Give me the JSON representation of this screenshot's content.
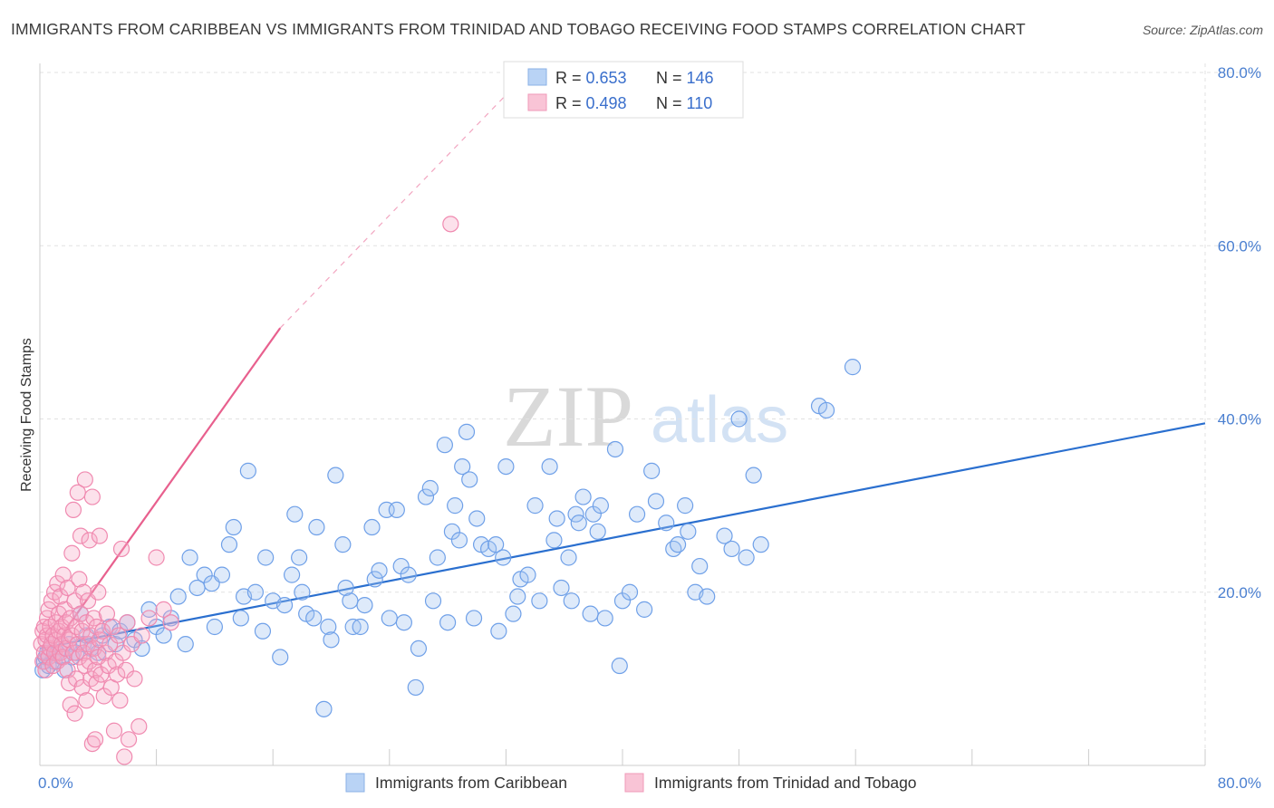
{
  "title": "IMMIGRANTS FROM CARIBBEAN VS IMMIGRANTS FROM TRINIDAD AND TOBAGO RECEIVING FOOD STAMPS CORRELATION CHART",
  "source": "Source: ZipAtlas.com",
  "watermark": {
    "zip": "ZIP",
    "atlas": "atlas"
  },
  "colors": {
    "blue": "#6fa0e8",
    "blue_line": "#2a6fcf",
    "pink": "#f28db0",
    "pink_line": "#e8608e",
    "tick": "#4a7fd0"
  },
  "legend": {
    "rows": [
      {
        "r_label": "R = ",
        "r_value": "0.653",
        "n_label": "N = ",
        "n_value": "146"
      },
      {
        "r_label": "R = ",
        "r_value": "0.498",
        "n_label": "N = ",
        "n_value": "110"
      }
    ]
  },
  "chart_data": {
    "type": "scatter",
    "title": "IMMIGRANTS FROM CARIBBEAN VS IMMIGRANTS FROM TRINIDAD AND TOBAGO RECEIVING FOOD STAMPS CORRELATION CHART",
    "xlabel": "",
    "ylabel": "Receiving Food Stamps",
    "xlim": [
      0,
      80
    ],
    "ylim": [
      0,
      80
    ],
    "x_tick_labels": [
      "0.0%",
      "80.0%"
    ],
    "y_tick_labels": [
      "20.0%",
      "40.0%",
      "60.0%",
      "80.0%"
    ],
    "y_ticks": [
      20,
      40,
      60,
      80
    ],
    "grid": true,
    "legend_placement": "top-center",
    "series": [
      {
        "name": "Immigrants from Caribbean",
        "color": "#6fa0e8",
        "trend": {
          "x": [
            0,
            80
          ],
          "y": [
            13.5,
            39.5
          ],
          "dashed": false
        },
        "points": [
          [
            0.2,
            11
          ],
          [
            0.3,
            12
          ],
          [
            0.4,
            12.5
          ],
          [
            0.5,
            13
          ],
          [
            0.6,
            11.5
          ],
          [
            0.8,
            14
          ],
          [
            1.0,
            12
          ],
          [
            1.2,
            13
          ],
          [
            1.5,
            12.5
          ],
          [
            1.7,
            11
          ],
          [
            2.0,
            14
          ],
          [
            2.2,
            12.5
          ],
          [
            2.5,
            13
          ],
          [
            2.8,
            17.5
          ],
          [
            3.0,
            14
          ],
          [
            3.2,
            15
          ],
          [
            3.5,
            13.5
          ],
          [
            4.0,
            13
          ],
          [
            4.3,
            15
          ],
          [
            4.8,
            16
          ],
          [
            5.2,
            14
          ],
          [
            5.5,
            15.5
          ],
          [
            6.0,
            16.5
          ],
          [
            6.5,
            14.5
          ],
          [
            7.0,
            13.5
          ],
          [
            7.5,
            18
          ],
          [
            8.0,
            16
          ],
          [
            8.5,
            15
          ],
          [
            9.0,
            17
          ],
          [
            9.5,
            19.5
          ],
          [
            10.0,
            14
          ],
          [
            10.3,
            24
          ],
          [
            10.8,
            20.5
          ],
          [
            11.3,
            22
          ],
          [
            11.8,
            21
          ],
          [
            12.0,
            16
          ],
          [
            12.5,
            22
          ],
          [
            13.0,
            25.5
          ],
          [
            13.3,
            27.5
          ],
          [
            13.8,
            17
          ],
          [
            14.0,
            19.5
          ],
          [
            14.3,
            34
          ],
          [
            14.8,
            20
          ],
          [
            15.3,
            15.5
          ],
          [
            15.5,
            24
          ],
          [
            16.0,
            19
          ],
          [
            16.5,
            12.5
          ],
          [
            16.8,
            18.5
          ],
          [
            17.3,
            22
          ],
          [
            17.5,
            29
          ],
          [
            17.8,
            24
          ],
          [
            18.0,
            20
          ],
          [
            18.3,
            17.5
          ],
          [
            18.8,
            17
          ],
          [
            19.0,
            27.5
          ],
          [
            19.5,
            6.5
          ],
          [
            19.8,
            16
          ],
          [
            20.0,
            14.5
          ],
          [
            20.3,
            33.5
          ],
          [
            20.8,
            25.5
          ],
          [
            21.0,
            20.5
          ],
          [
            21.3,
            19
          ],
          [
            21.5,
            16
          ],
          [
            22.0,
            16
          ],
          [
            22.3,
            18.5
          ],
          [
            22.8,
            27.5
          ],
          [
            23.0,
            21.5
          ],
          [
            23.3,
            22.5
          ],
          [
            23.8,
            29.5
          ],
          [
            24.0,
            17
          ],
          [
            24.5,
            29.5
          ],
          [
            24.8,
            23
          ],
          [
            25.0,
            16.5
          ],
          [
            25.3,
            22
          ],
          [
            25.8,
            9
          ],
          [
            26.0,
            13.5
          ],
          [
            26.5,
            31
          ],
          [
            26.8,
            32
          ],
          [
            27.0,
            19
          ],
          [
            27.3,
            24
          ],
          [
            27.8,
            37
          ],
          [
            28.0,
            16.5
          ],
          [
            28.3,
            27
          ],
          [
            28.5,
            30
          ],
          [
            28.8,
            26
          ],
          [
            29.0,
            34.5
          ],
          [
            29.3,
            38.5
          ],
          [
            29.5,
            33
          ],
          [
            29.8,
            17
          ],
          [
            30.0,
            28.5
          ],
          [
            30.3,
            25.5
          ],
          [
            30.8,
            25
          ],
          [
            31.3,
            25.5
          ],
          [
            31.5,
            15.5
          ],
          [
            31.8,
            24
          ],
          [
            32.0,
            34.5
          ],
          [
            32.5,
            17.5
          ],
          [
            32.8,
            19.5
          ],
          [
            33.0,
            21.5
          ],
          [
            33.5,
            22
          ],
          [
            34.0,
            30
          ],
          [
            34.3,
            19
          ],
          [
            35.0,
            34.5
          ],
          [
            35.3,
            26
          ],
          [
            35.5,
            28.5
          ],
          [
            35.8,
            20.5
          ],
          [
            36.3,
            24
          ],
          [
            36.5,
            19
          ],
          [
            36.8,
            29
          ],
          [
            37.0,
            28
          ],
          [
            37.3,
            31
          ],
          [
            37.8,
            17.5
          ],
          [
            38.0,
            29
          ],
          [
            38.3,
            27
          ],
          [
            38.5,
            30
          ],
          [
            38.8,
            17
          ],
          [
            39.5,
            36.5
          ],
          [
            39.8,
            11.5
          ],
          [
            40.0,
            19
          ],
          [
            40.5,
            20
          ],
          [
            41.0,
            29
          ],
          [
            41.5,
            18
          ],
          [
            42.0,
            34
          ],
          [
            42.3,
            30.5
          ],
          [
            43.0,
            28
          ],
          [
            43.5,
            25
          ],
          [
            43.8,
            25.5
          ],
          [
            44.3,
            30
          ],
          [
            44.5,
            27
          ],
          [
            45.0,
            20
          ],
          [
            45.3,
            23
          ],
          [
            45.8,
            19.5
          ],
          [
            47.0,
            26.5
          ],
          [
            47.5,
            25
          ],
          [
            48.0,
            40
          ],
          [
            48.5,
            24
          ],
          [
            49.0,
            33.5
          ],
          [
            49.5,
            25.5
          ],
          [
            53.5,
            41.5
          ],
          [
            54.0,
            41
          ],
          [
            55.8,
            46
          ]
        ]
      },
      {
        "name": "Immigrants from Trinidad and Tobago",
        "color": "#f28db0",
        "trend": {
          "x": [
            0,
            16.5
          ],
          "y": [
            11.5,
            50.5
          ],
          "dashed": false,
          "extension": {
            "x": [
              16.5,
              33.5
            ],
            "y": [
              50.5,
              80
            ],
            "dashed": true
          }
        },
        "points": [
          [
            0.1,
            14
          ],
          [
            0.2,
            15.5
          ],
          [
            0.2,
            12
          ],
          [
            0.3,
            16
          ],
          [
            0.3,
            13
          ],
          [
            0.4,
            14.5
          ],
          [
            0.4,
            11
          ],
          [
            0.5,
            17
          ],
          [
            0.5,
            15
          ],
          [
            0.6,
            12.5
          ],
          [
            0.6,
            18
          ],
          [
            0.7,
            13.5
          ],
          [
            0.7,
            16
          ],
          [
            0.8,
            19
          ],
          [
            0.8,
            14
          ],
          [
            0.9,
            15
          ],
          [
            0.9,
            11.5
          ],
          [
            1.0,
            20
          ],
          [
            1.0,
            13
          ],
          [
            1.1,
            16.5
          ],
          [
            1.1,
            14.5
          ],
          [
            1.2,
            12
          ],
          [
            1.2,
            21
          ],
          [
            1.3,
            15.5
          ],
          [
            1.3,
            17.5
          ],
          [
            1.4,
            13
          ],
          [
            1.4,
            19.5
          ],
          [
            1.5,
            16
          ],
          [
            1.5,
            14
          ],
          [
            1.6,
            12.5
          ],
          [
            1.6,
            22
          ],
          [
            1.7,
            15
          ],
          [
            1.7,
            18
          ],
          [
            1.8,
            13.5
          ],
          [
            1.8,
            16.5
          ],
          [
            1.9,
            11
          ],
          [
            1.9,
            20.5
          ],
          [
            2.0,
            14.5
          ],
          [
            2.0,
            9.5
          ],
          [
            2.1,
            17
          ],
          [
            2.1,
            7
          ],
          [
            2.2,
            15
          ],
          [
            2.2,
            24.5
          ],
          [
            2.3,
            13
          ],
          [
            2.3,
            29.5
          ],
          [
            2.4,
            19
          ],
          [
            2.4,
            6
          ],
          [
            2.5,
            16
          ],
          [
            2.5,
            10
          ],
          [
            2.6,
            31.5
          ],
          [
            2.6,
            14
          ],
          [
            2.7,
            21.5
          ],
          [
            2.7,
            12.5
          ],
          [
            2.8,
            26.5
          ],
          [
            2.8,
            17.5
          ],
          [
            2.9,
            15.5
          ],
          [
            2.9,
            9
          ],
          [
            3.0,
            20
          ],
          [
            3.0,
            13
          ],
          [
            3.1,
            33
          ],
          [
            3.1,
            11.5
          ],
          [
            3.2,
            16.5
          ],
          [
            3.2,
            7.5
          ],
          [
            3.3,
            14
          ],
          [
            3.3,
            19
          ],
          [
            3.4,
            12
          ],
          [
            3.4,
            26
          ],
          [
            3.5,
            15
          ],
          [
            3.5,
            10
          ],
          [
            3.6,
            2.5
          ],
          [
            3.6,
            31
          ],
          [
            3.7,
            13.5
          ],
          [
            3.7,
            17
          ],
          [
            3.8,
            11
          ],
          [
            3.8,
            3
          ],
          [
            3.9,
            16
          ],
          [
            3.9,
            9.5
          ],
          [
            4.0,
            20
          ],
          [
            4.0,
            12.5
          ],
          [
            4.1,
            14.5
          ],
          [
            4.1,
            26.5
          ],
          [
            4.2,
            10.5
          ],
          [
            4.3,
            15.5
          ],
          [
            4.4,
            8
          ],
          [
            4.5,
            13
          ],
          [
            4.6,
            17.5
          ],
          [
            4.7,
            11.5
          ],
          [
            4.8,
            14
          ],
          [
            4.9,
            9
          ],
          [
            5.0,
            16
          ],
          [
            5.1,
            4
          ],
          [
            5.2,
            12
          ],
          [
            5.3,
            10.5
          ],
          [
            5.4,
            15
          ],
          [
            5.5,
            7.5
          ],
          [
            5.6,
            25
          ],
          [
            5.7,
            13
          ],
          [
            5.8,
            1
          ],
          [
            5.9,
            11
          ],
          [
            6.0,
            16.5
          ],
          [
            6.1,
            3
          ],
          [
            6.3,
            14
          ],
          [
            6.5,
            10
          ],
          [
            6.8,
            4.5
          ],
          [
            7.0,
            15
          ],
          [
            7.5,
            17
          ],
          [
            8.0,
            24
          ],
          [
            8.5,
            18
          ],
          [
            9.0,
            16.5
          ],
          [
            28.2,
            62.5
          ]
        ]
      }
    ]
  },
  "bottom_legend": [
    {
      "label": "Immigrants from Caribbean"
    },
    {
      "label": "Immigrants from Trinidad and Tobago"
    }
  ]
}
